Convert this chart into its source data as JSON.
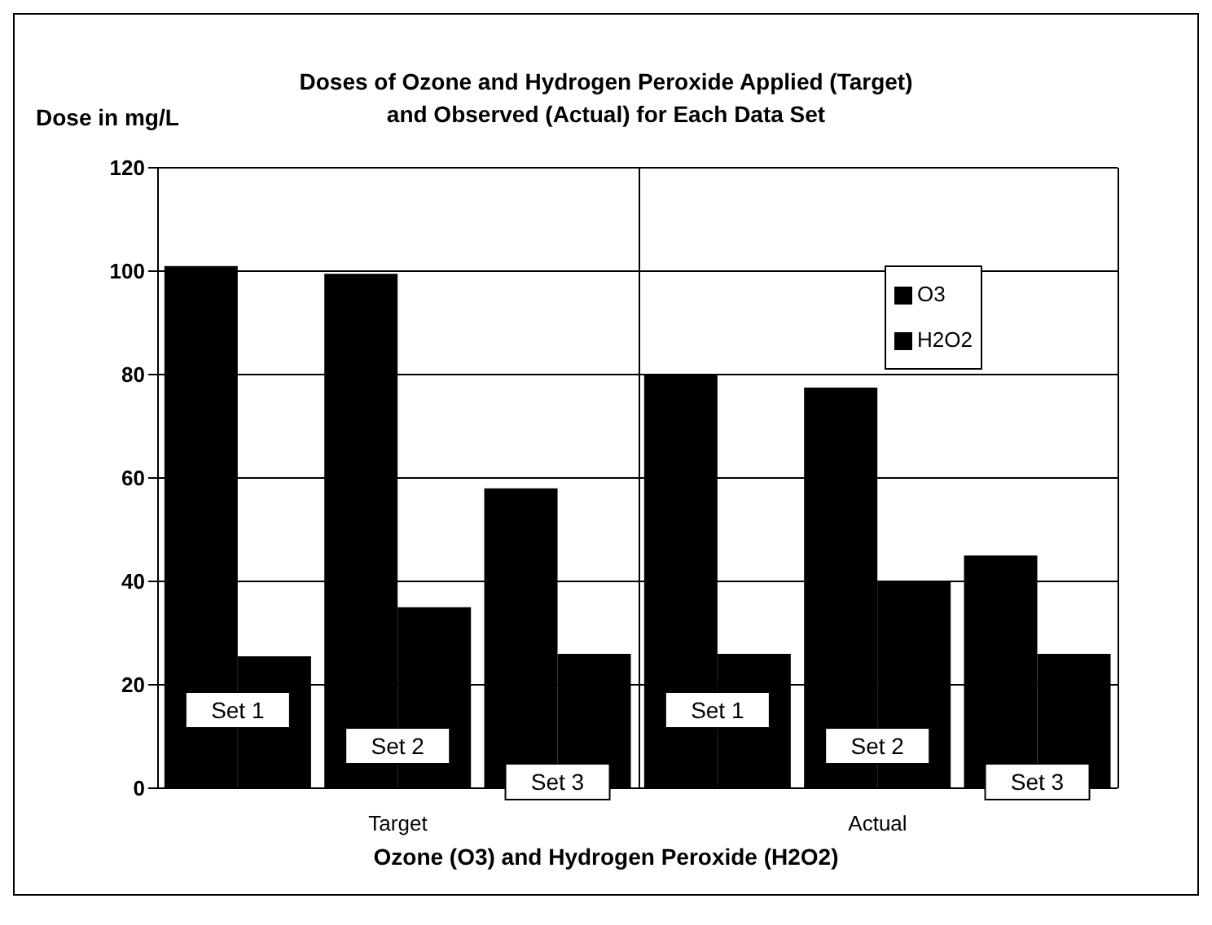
{
  "chart_data": {
    "type": "bar",
    "title": "Doses of Ozone and Hydrogen Peroxide Applied (Target)\nand Observed (Actual) for Each Data Set",
    "ylabel": "Dose in mg/L",
    "xlabel": "Ozone (O3) and Hydrogen Peroxide (H2O2)",
    "annotations": [
      "Target",
      "Actual"
    ],
    "categories": [
      "Set 1",
      "Set 2",
      "Set 3",
      "Set 1",
      "Set 2",
      "Set 3"
    ],
    "series": [
      {
        "name": "O3",
        "color": "#000000",
        "values": [
          101,
          99.5,
          58,
          80,
          77.5,
          45
        ]
      },
      {
        "name": "H2O2",
        "color": "#000000",
        "values": [
          25.5,
          35,
          26,
          26,
          40,
          26
        ]
      }
    ],
    "ylim": [
      0,
      120
    ],
    "yticks": [
      0,
      20,
      40,
      60,
      80,
      100,
      120
    ],
    "grid": "y",
    "legend": "top right"
  }
}
